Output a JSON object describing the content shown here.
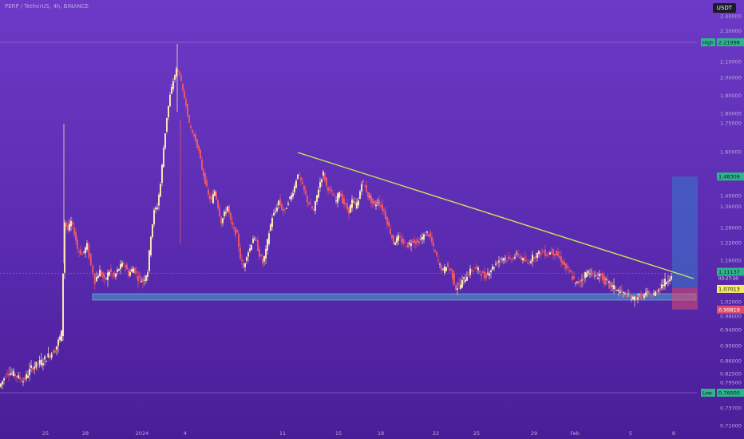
{
  "symbol_label": "PERP / TetherUS, 4h, BINANCE",
  "currency": "USDT",
  "chart_data": {
    "type": "candlestick",
    "y_ticks": [
      "2.40000",
      "2.30000",
      "2.10000",
      "2.00000",
      "1.90000",
      "1.80000",
      "1.75000",
      "1.60000",
      "1.40000",
      "1.36000",
      "1.28000",
      "1.22000",
      "1.16000",
      "1.02000",
      "0.98000",
      "0.94000",
      "0.90000",
      "0.86000",
      "0.82500",
      "0.79500",
      "0.76300",
      "0.73700",
      "0.71000"
    ],
    "x_ticks": [
      "25",
      "28",
      "2024",
      "4",
      "11",
      "15",
      "18",
      "22",
      "25",
      "29",
      "Feb",
      "5",
      "8"
    ],
    "tags": {
      "high": {
        "label": "High",
        "value": "2.21998"
      },
      "target": {
        "value": "1.48309"
      },
      "current": {
        "value": "1.11137",
        "countdown": "03:27:10"
      },
      "entry": {
        "value": "1.07013"
      },
      "stop": {
        "value": "0.99819"
      },
      "low": {
        "label": "Low",
        "value": "0.76000"
      }
    },
    "path": [
      [
        0,
        0.78
      ],
      [
        10,
        0.83
      ],
      [
        20,
        0.82
      ],
      [
        30,
        0.8
      ],
      [
        40,
        0.84
      ],
      [
        55,
        0.86
      ],
      [
        70,
        0.89
      ],
      [
        78,
        0.93
      ],
      [
        82,
        1.3
      ],
      [
        86,
        1.27
      ],
      [
        90,
        1.3
      ],
      [
        94,
        1.26
      ],
      [
        98,
        1.2
      ],
      [
        104,
        1.18
      ],
      [
        110,
        1.21
      ],
      [
        115,
        1.14
      ],
      [
        120,
        1.09
      ],
      [
        126,
        1.12
      ],
      [
        132,
        1.09
      ],
      [
        138,
        1.12
      ],
      [
        144,
        1.1
      ],
      [
        150,
        1.13
      ],
      [
        156,
        1.15
      ],
      [
        162,
        1.11
      ],
      [
        168,
        1.13
      ],
      [
        174,
        1.1
      ],
      [
        180,
        1.09
      ],
      [
        186,
        1.12
      ],
      [
        190,
        1.25
      ],
      [
        194,
        1.34
      ],
      [
        198,
        1.36
      ],
      [
        202,
        1.45
      ],
      [
        206,
        1.62
      ],
      [
        210,
        1.78
      ],
      [
        214,
        1.9
      ],
      [
        218,
        1.98
      ],
      [
        222,
        2.05
      ],
      [
        226,
        2.02
      ],
      [
        230,
        1.92
      ],
      [
        234,
        1.85
      ],
      [
        238,
        1.74
      ],
      [
        242,
        1.7
      ],
      [
        246,
        1.66
      ],
      [
        250,
        1.6
      ],
      [
        254,
        1.52
      ],
      [
        258,
        1.46
      ],
      [
        262,
        1.4
      ],
      [
        266,
        1.38
      ],
      [
        270,
        1.42
      ],
      [
        274,
        1.36
      ],
      [
        278,
        1.3
      ],
      [
        282,
        1.33
      ],
      [
        286,
        1.36
      ],
      [
        290,
        1.3
      ],
      [
        294,
        1.27
      ],
      [
        298,
        1.25
      ],
      [
        302,
        1.17
      ],
      [
        306,
        1.13
      ],
      [
        310,
        1.18
      ],
      [
        314,
        1.2
      ],
      [
        318,
        1.24
      ],
      [
        322,
        1.22
      ],
      [
        326,
        1.18
      ],
      [
        330,
        1.15
      ],
      [
        334,
        1.19
      ],
      [
        338,
        1.26
      ],
      [
        342,
        1.32
      ],
      [
        346,
        1.34
      ],
      [
        350,
        1.38
      ],
      [
        354,
        1.35
      ],
      [
        358,
        1.34
      ],
      [
        362,
        1.38
      ],
      [
        366,
        1.4
      ],
      [
        370,
        1.44
      ],
      [
        374,
        1.5
      ],
      [
        378,
        1.46
      ],
      [
        382,
        1.42
      ],
      [
        386,
        1.38
      ],
      [
        390,
        1.36
      ],
      [
        394,
        1.34
      ],
      [
        398,
        1.4
      ],
      [
        402,
        1.46
      ],
      [
        406,
        1.5
      ],
      [
        410,
        1.44
      ],
      [
        414,
        1.42
      ],
      [
        418,
        1.4
      ],
      [
        422,
        1.38
      ],
      [
        426,
        1.42
      ],
      [
        430,
        1.38
      ],
      [
        434,
        1.36
      ],
      [
        438,
        1.34
      ],
      [
        442,
        1.38
      ],
      [
        446,
        1.36
      ],
      [
        450,
        1.38
      ],
      [
        454,
        1.46
      ],
      [
        458,
        1.44
      ],
      [
        462,
        1.4
      ],
      [
        466,
        1.38
      ],
      [
        470,
        1.36
      ],
      [
        474,
        1.38
      ],
      [
        478,
        1.36
      ],
      [
        482,
        1.34
      ],
      [
        486,
        1.3
      ],
      [
        490,
        1.26
      ],
      [
        494,
        1.22
      ],
      [
        500,
        1.24
      ],
      [
        506,
        1.22
      ],
      [
        512,
        1.21
      ],
      [
        518,
        1.23
      ],
      [
        524,
        1.22
      ],
      [
        530,
        1.24
      ],
      [
        536,
        1.26
      ],
      [
        540,
        1.24
      ],
      [
        544,
        1.2
      ],
      [
        548,
        1.17
      ],
      [
        552,
        1.14
      ],
      [
        556,
        1.12
      ],
      [
        560,
        1.14
      ],
      [
        566,
        1.12
      ],
      [
        572,
        1.07
      ],
      [
        578,
        1.08
      ],
      [
        584,
        1.1
      ],
      [
        590,
        1.12
      ],
      [
        596,
        1.13
      ],
      [
        602,
        1.12
      ],
      [
        608,
        1.1
      ],
      [
        614,
        1.12
      ],
      [
        620,
        1.14
      ],
      [
        626,
        1.16
      ],
      [
        632,
        1.17
      ],
      [
        638,
        1.16
      ],
      [
        644,
        1.17
      ],
      [
        650,
        1.18
      ],
      [
        656,
        1.16
      ],
      [
        662,
        1.15
      ],
      [
        668,
        1.17
      ],
      [
        674,
        1.18
      ],
      [
        680,
        1.19
      ],
      [
        686,
        1.18
      ],
      [
        692,
        1.19
      ],
      [
        698,
        1.18
      ],
      [
        704,
        1.16
      ],
      [
        710,
        1.13
      ],
      [
        716,
        1.11
      ],
      [
        722,
        1.08
      ],
      [
        728,
        1.09
      ],
      [
        734,
        1.11
      ],
      [
        740,
        1.12
      ],
      [
        746,
        1.1
      ],
      [
        752,
        1.11
      ],
      [
        758,
        1.09
      ],
      [
        764,
        1.08
      ],
      [
        770,
        1.07
      ],
      [
        776,
        1.06
      ],
      [
        782,
        1.05
      ],
      [
        788,
        1.04
      ],
      [
        794,
        1.03
      ],
      [
        800,
        1.04
      ],
      [
        806,
        1.04
      ],
      [
        812,
        1.05
      ],
      [
        818,
        1.04
      ],
      [
        824,
        1.06
      ],
      [
        830,
        1.08
      ],
      [
        836,
        1.09
      ],
      [
        842,
        1.11
      ]
    ]
  }
}
